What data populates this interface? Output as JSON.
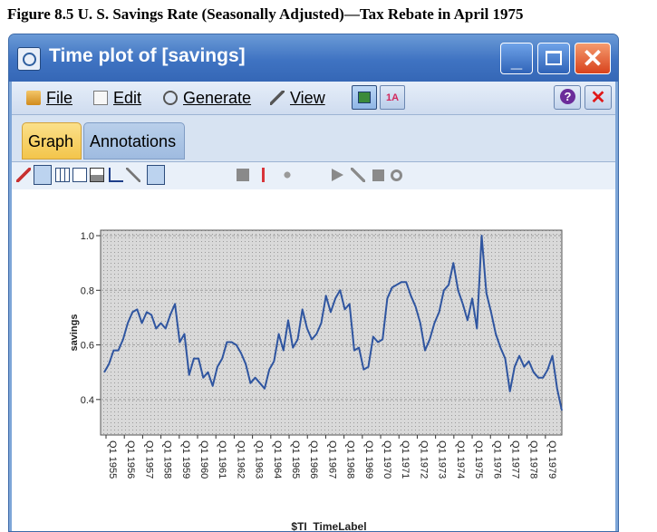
{
  "figure_title": "Figure 8.5 U. S. Savings Rate (Seasonally Adjusted)—Tax Rebate in April 1975",
  "window": {
    "title": "Time plot of [savings]",
    "minimize": "_",
    "close": "✕"
  },
  "menu": {
    "items": [
      {
        "label": "File",
        "icon": "folder-icon"
      },
      {
        "label": "Edit",
        "icon": "edit-icon"
      },
      {
        "label": "Generate",
        "icon": "generate-icon"
      },
      {
        "label": "View",
        "icon": "view-icon"
      }
    ],
    "help": "?",
    "close": "✕"
  },
  "tabs": [
    {
      "label": "Graph",
      "active": true
    },
    {
      "label": "Annotations",
      "active": false
    }
  ],
  "toolbar_icons": [
    "brush-icon",
    "pointer-icon",
    "grid-icon",
    "copy-icon",
    "print-icon",
    "axis-icon",
    "wand-icon",
    "bulb-icon",
    "square-icon",
    "line-icon",
    "sparkle-icon",
    "arrow-icon",
    "diagonal-icon",
    "block-icon",
    "gear-icon"
  ],
  "colors": {
    "title_bar": "#3f73c2",
    "series_line": "#2f55a0",
    "plot_background": "#d8d8d8",
    "active_tab": "#f3c54b"
  },
  "chart_data": {
    "type": "line",
    "title": "",
    "xlabel": "$TI_TimeLabel",
    "ylabel": "savings",
    "ylim": [
      0.27,
      1.02
    ],
    "yticks": [
      0.4,
      0.6,
      0.8,
      1.0
    ],
    "ytick_labels": [
      "0.4",
      "0.6",
      "0.8",
      "1.0"
    ],
    "xtick_labels": [
      "Q1 1955",
      "Q1 1956",
      "Q1 1957",
      "Q1 1958",
      "Q1 1959",
      "Q1 1960",
      "Q1 1961",
      "Q1 1962",
      "Q1 1963",
      "Q1 1964",
      "Q1 1965",
      "Q1 1966",
      "Q1 1967",
      "Q1 1968",
      "Q1 1969",
      "Q1 1970",
      "Q1 1971",
      "Q1 1972",
      "Q1 1973",
      "Q1 1974",
      "Q1 1975",
      "Q1 1976",
      "Q1 1977",
      "Q1 1978",
      "Q1 1979"
    ],
    "grid": true,
    "series": [
      {
        "values": [
          0.5,
          0.53,
          0.58,
          0.58,
          0.62,
          0.68,
          0.72,
          0.73,
          0.68,
          0.72,
          0.71,
          0.66,
          0.68,
          0.66,
          0.71,
          0.75,
          0.61,
          0.64,
          0.49,
          0.55,
          0.55,
          0.48,
          0.5,
          0.45,
          0.52,
          0.55,
          0.61,
          0.61,
          0.6,
          0.57,
          0.53,
          0.46,
          0.48,
          0.46,
          0.44,
          0.51,
          0.54,
          0.64,
          0.58,
          0.69,
          0.59,
          0.62,
          0.73,
          0.66,
          0.62,
          0.64,
          0.68,
          0.78,
          0.72,
          0.77,
          0.8,
          0.73,
          0.75,
          0.58,
          0.59,
          0.51,
          0.52,
          0.63,
          0.61,
          0.62,
          0.77,
          0.81,
          0.82,
          0.83,
          0.83,
          0.78,
          0.74,
          0.68,
          0.58,
          0.62,
          0.68,
          0.72,
          0.8,
          0.82,
          0.9,
          0.8,
          0.75,
          0.69,
          0.77,
          0.66,
          1.0,
          0.79,
          0.72,
          0.64,
          0.59,
          0.55,
          0.43,
          0.52,
          0.56,
          0.52,
          0.54,
          0.5,
          0.48,
          0.48,
          0.51,
          0.56,
          0.44,
          0.36
        ]
      }
    ]
  }
}
